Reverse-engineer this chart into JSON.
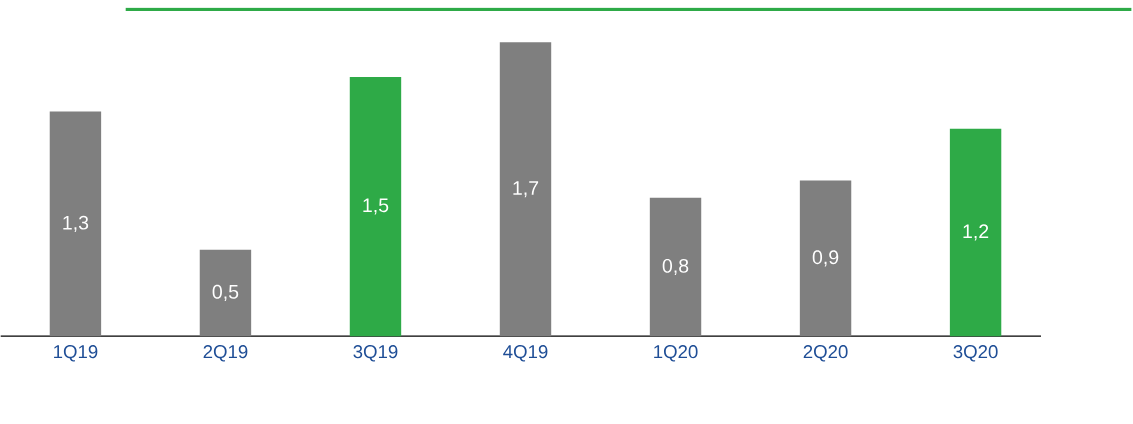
{
  "chart_data": {
    "type": "bar",
    "categories": [
      "1Q19",
      "2Q19",
      "3Q19",
      "4Q19",
      "1Q20",
      "2Q20",
      "3Q20"
    ],
    "values": [
      1.3,
      0.5,
      1.5,
      1.7,
      0.8,
      0.9,
      1.2
    ],
    "colors": [
      "#7f7f7f",
      "#7f7f7f",
      "#2eaa47",
      "#7f7f7f",
      "#7f7f7f",
      "#7f7f7f",
      "#2eaa47"
    ],
    "data_labels": true,
    "value_labels": [
      "1,3",
      "0,5",
      "1,5",
      "1,7",
      "0,8",
      "0,9",
      "1,2"
    ]
  }
}
